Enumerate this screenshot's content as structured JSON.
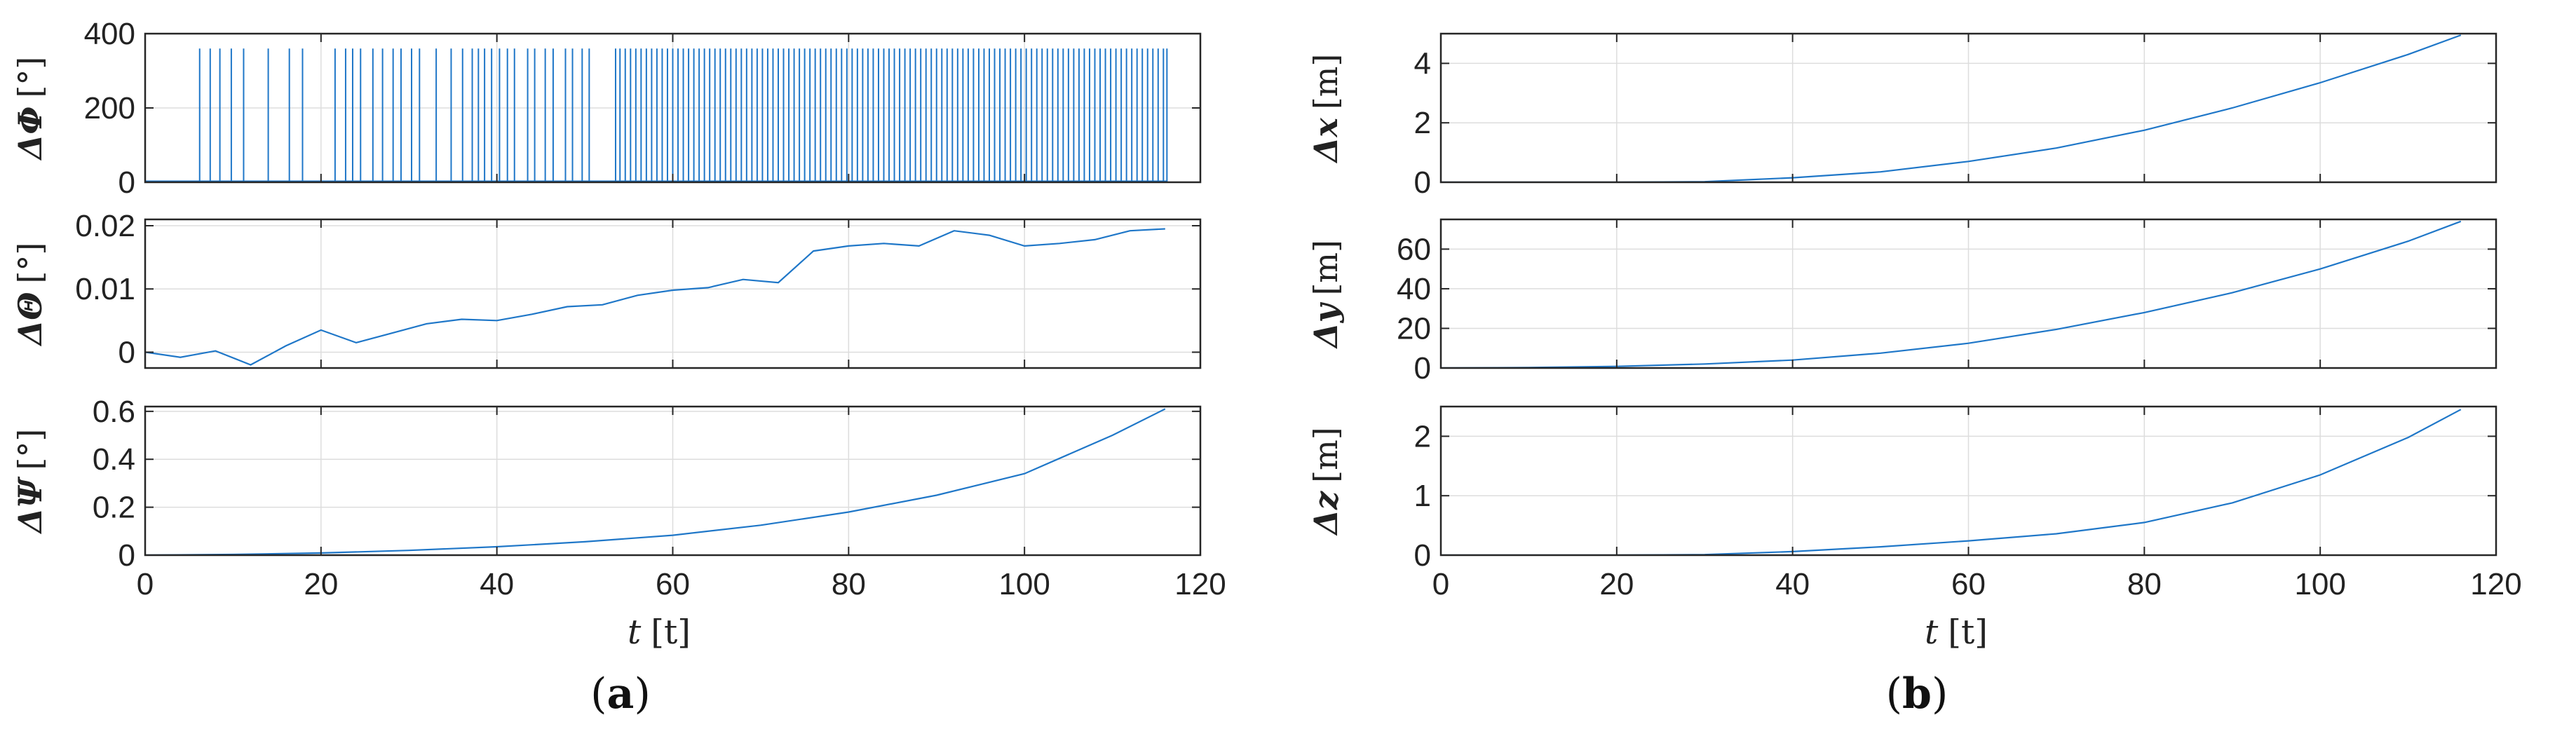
{
  "panels": {
    "a": {
      "label": "a",
      "xlabel_var": "t",
      "xlabel_unit": "[t]"
    },
    "b": {
      "label": "b",
      "xlabel_var": "t",
      "xlabel_unit": "[t]"
    }
  },
  "chart_data": [
    {
      "id": "dPhi",
      "type": "line",
      "panel": "a",
      "ylabel_sym": "ΔΦ",
      "ylabel_unit": "[°]",
      "xlim": [
        0,
        120
      ],
      "ylim": [
        0,
        400
      ],
      "xticks": [
        0,
        20,
        40,
        60,
        80,
        100,
        120
      ],
      "yticks": [
        0,
        200,
        400
      ],
      "x_tick_labels": false,
      "grid": true,
      "note": "angle-wrap jumps between 0 and 360 degrees",
      "spike_value": 360,
      "spike_times": [
        6.2,
        7.4,
        8.5,
        9.8,
        11.2,
        14.0,
        16.4,
        17.9,
        21.6,
        22.8,
        23.6,
        24.5,
        25.9,
        27.0,
        28.2,
        29.1,
        30.3,
        31.2,
        33.1,
        34.8,
        36.1,
        37.2,
        37.9,
        38.6,
        39.4,
        40.3,
        41.2,
        42.0,
        43.5,
        44.3,
        45.5,
        46.4,
        47.8,
        48.6,
        49.7,
        50.5,
        53.5,
        54.0,
        54.6,
        55.2,
        55.8,
        56.4,
        57.0,
        57.6,
        58.2,
        58.8,
        59.4,
        60.0,
        60.6,
        61.2,
        61.8,
        62.4,
        63.0,
        63.6,
        64.2,
        64.8,
        65.4,
        66.0,
        66.6,
        67.2,
        67.8,
        68.4,
        69.0,
        69.6,
        70.2,
        70.8,
        71.4,
        72.0,
        72.6,
        73.2,
        73.8,
        74.4,
        75.0,
        75.6,
        76.2,
        76.8,
        77.4,
        78.0,
        78.6,
        79.2,
        79.8,
        80.4,
        81.0,
        81.6,
        82.2,
        82.8,
        83.4,
        84.0,
        84.6,
        85.2,
        85.8,
        86.4,
        87.0,
        87.6,
        88.2,
        88.8,
        89.4,
        90.0,
        90.6,
        91.2,
        91.8,
        92.4,
        93.0,
        93.6,
        94.2,
        94.8,
        95.4,
        96.0,
        96.6,
        97.2,
        97.8,
        98.4,
        99.0,
        99.6,
        100.2,
        100.8,
        101.4,
        102.0,
        102.6,
        103.2,
        103.8,
        104.4,
        105.0,
        105.6,
        106.2,
        106.8,
        107.4,
        108.0,
        108.6,
        109.2,
        109.8,
        110.4,
        111.0,
        111.6,
        112.2,
        112.8,
        113.4,
        114.0,
        114.6,
        115.2,
        115.8,
        116.2
      ]
    },
    {
      "id": "dTheta",
      "type": "line",
      "panel": "a",
      "ylabel_sym": "ΔΘ",
      "ylabel_unit": "[°]",
      "xlim": [
        0,
        120
      ],
      "ylim": [
        -0.0025,
        0.021
      ],
      "xticks": [
        0,
        20,
        40,
        60,
        80,
        100,
        120
      ],
      "yticks": [
        0,
        0.01,
        0.02
      ],
      "x_tick_labels": false,
      "grid": true,
      "x": [
        0,
        4,
        8,
        12,
        16,
        20,
        24,
        28,
        32,
        36,
        40,
        44,
        48,
        52,
        56,
        60,
        64,
        68,
        72,
        76,
        80,
        84,
        88,
        92,
        96,
        100,
        104,
        108,
        112,
        116
      ],
      "y": [
        0.0,
        -0.0008,
        0.0002,
        -0.002,
        0.001,
        0.0035,
        0.0015,
        0.003,
        0.0045,
        0.0052,
        0.005,
        0.006,
        0.0072,
        0.0075,
        0.009,
        0.0098,
        0.0102,
        0.0115,
        0.011,
        0.016,
        0.0168,
        0.0172,
        0.0168,
        0.0192,
        0.0185,
        0.0168,
        0.0172,
        0.0178,
        0.0192,
        0.0195
      ]
    },
    {
      "id": "dPsi",
      "type": "line",
      "panel": "a",
      "ylabel_sym": "ΔΨ",
      "ylabel_unit": "[°]",
      "xlim": [
        0,
        120
      ],
      "ylim": [
        0,
        0.62
      ],
      "xticks": [
        0,
        20,
        40,
        60,
        80,
        100,
        120
      ],
      "yticks": [
        0,
        0.2,
        0.4,
        0.6
      ],
      "x_tick_labels": true,
      "grid": true,
      "x": [
        0,
        10,
        20,
        30,
        40,
        50,
        60,
        70,
        80,
        90,
        100,
        110,
        116
      ],
      "y": [
        0.0,
        0.003,
        0.009,
        0.02,
        0.035,
        0.056,
        0.083,
        0.125,
        0.18,
        0.25,
        0.34,
        0.5,
        0.61
      ]
    },
    {
      "id": "dx",
      "type": "line",
      "panel": "b",
      "ylabel_sym": "Δx",
      "ylabel_unit": "[m]",
      "xlim": [
        0,
        120
      ],
      "ylim": [
        0,
        5
      ],
      "xticks": [
        0,
        20,
        40,
        60,
        80,
        100,
        120
      ],
      "yticks": [
        0,
        2,
        4
      ],
      "x_tick_labels": false,
      "grid": true,
      "x": [
        0,
        10,
        20,
        30,
        40,
        50,
        60,
        70,
        80,
        90,
        100,
        110,
        116
      ],
      "y": [
        0.0,
        0.0,
        0.0,
        0.02,
        0.15,
        0.35,
        0.7,
        1.15,
        1.75,
        2.5,
        3.35,
        4.3,
        4.95
      ]
    },
    {
      "id": "dy",
      "type": "line",
      "panel": "b",
      "ylabel_sym": "Δy",
      "ylabel_unit": "[m]",
      "xlim": [
        0,
        120
      ],
      "ylim": [
        0,
        75
      ],
      "xticks": [
        0,
        20,
        40,
        60,
        80,
        100,
        120
      ],
      "yticks": [
        0,
        20,
        40,
        60
      ],
      "x_tick_labels": false,
      "grid": true,
      "x": [
        0,
        10,
        20,
        30,
        40,
        50,
        60,
        70,
        80,
        90,
        100,
        110,
        116
      ],
      "y": [
        0.0,
        0.2,
        0.8,
        2.0,
        4.0,
        7.5,
        12.5,
        19.5,
        28.0,
        38.0,
        50.0,
        64.0,
        74.0
      ]
    },
    {
      "id": "dz",
      "type": "line",
      "panel": "b",
      "ylabel_sym": "Δz",
      "ylabel_unit": "[m]",
      "xlim": [
        0,
        120
      ],
      "ylim": [
        0,
        2.5
      ],
      "xticks": [
        0,
        20,
        40,
        60,
        80,
        100,
        120
      ],
      "yticks": [
        0,
        1,
        2
      ],
      "x_tick_labels": true,
      "grid": true,
      "x": [
        0,
        10,
        20,
        30,
        40,
        50,
        60,
        70,
        80,
        90,
        100,
        110,
        116
      ],
      "y": [
        0.0,
        0.0,
        0.0,
        0.01,
        0.06,
        0.14,
        0.24,
        0.36,
        0.55,
        0.88,
        1.35,
        1.98,
        2.45
      ]
    }
  ]
}
